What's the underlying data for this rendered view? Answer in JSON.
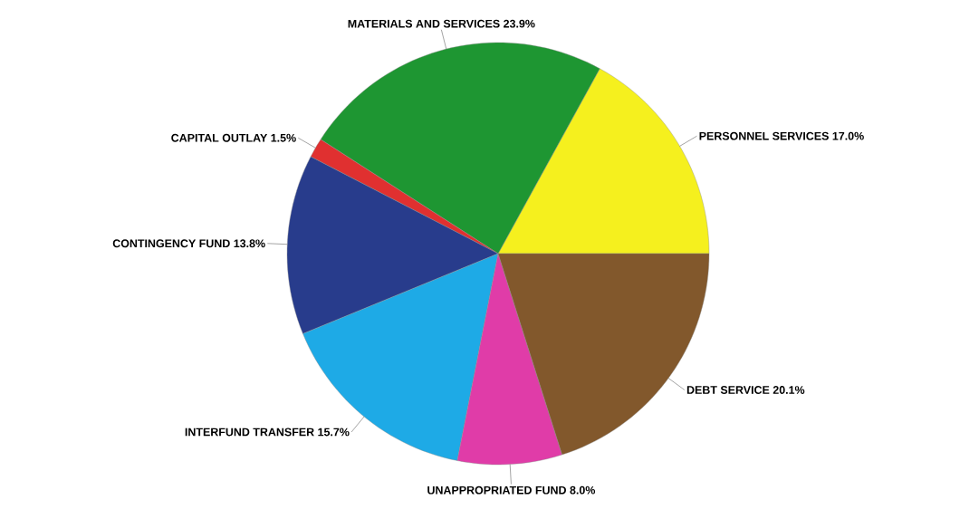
{
  "chart_data": {
    "type": "pie",
    "categories": [
      "PERSONNEL SERVICES",
      "MATERIALS AND SERVICES",
      "CAPITAL OUTLAY",
      "CONTINGENCY FUND",
      "INTERFUND TRANSFER",
      "UNAPPROPRIATED FUND",
      "DEBT SERVICE"
    ],
    "values": [
      17.0,
      23.9,
      1.5,
      13.8,
      15.7,
      8.0,
      20.1
    ],
    "value_labels": [
      "17.0%",
      "23.9%",
      "1.5%",
      "13.8%",
      "15.7%",
      "8.0%",
      "20.1%"
    ],
    "colors": [
      "#F5F01E",
      "#1E9632",
      "#E03030",
      "#283C8C",
      "#1EAAE6",
      "#E03CA8",
      "#82582C"
    ]
  }
}
